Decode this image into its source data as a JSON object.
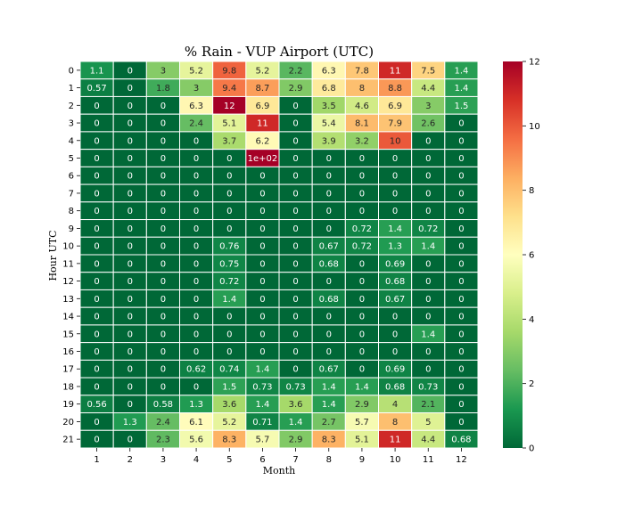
{
  "chart_data": {
    "type": "heatmap",
    "title": "% Rain - VUP Airport (UTC)",
    "xlabel": "Month",
    "ylabel": "Hour UTC",
    "x_categories": [
      "1",
      "2",
      "3",
      "4",
      "5",
      "6",
      "7",
      "8",
      "9",
      "10",
      "11",
      "12"
    ],
    "y_categories": [
      "0",
      "1",
      "2",
      "3",
      "4",
      "5",
      "6",
      "7",
      "8",
      "9",
      "10",
      "11",
      "12",
      "13",
      "14",
      "15",
      "16",
      "17",
      "18",
      "19",
      "20",
      "21"
    ],
    "values": [
      [
        1.1,
        0,
        3,
        5.2,
        9.8,
        5.2,
        2.2,
        6.3,
        7.8,
        11,
        7.5,
        1.4
      ],
      [
        0.57,
        0,
        1.8,
        3,
        9.4,
        8.7,
        2.9,
        6.8,
        8,
        8.8,
        4.4,
        1.4
      ],
      [
        0,
        0,
        0,
        6.3,
        12,
        6.9,
        0,
        3.5,
        4.6,
        6.9,
        3,
        1.5
      ],
      [
        0,
        0,
        0,
        2.4,
        5.1,
        11,
        0,
        5.4,
        8.1,
        7.9,
        2.6,
        0
      ],
      [
        0,
        0,
        0,
        0,
        3.7,
        6.2,
        0,
        3.9,
        3.2,
        10,
        0,
        0
      ],
      [
        0,
        0,
        0,
        0,
        0,
        100,
        0,
        0,
        0,
        0,
        0,
        0
      ],
      [
        0,
        0,
        0,
        0,
        0,
        0,
        0,
        0,
        0,
        0,
        0,
        0
      ],
      [
        0,
        0,
        0,
        0,
        0,
        0,
        0,
        0,
        0,
        0,
        0,
        0
      ],
      [
        0,
        0,
        0,
        0,
        0,
        0,
        0,
        0,
        0,
        0,
        0,
        0
      ],
      [
        0,
        0,
        0,
        0,
        0,
        0,
        0,
        0,
        0.72,
        1.4,
        0.72,
        0
      ],
      [
        0,
        0,
        0,
        0,
        0.76,
        0,
        0,
        0.67,
        0.72,
        1.3,
        1.4,
        0
      ],
      [
        0,
        0,
        0,
        0,
        0.75,
        0,
        0,
        0.68,
        0,
        0.69,
        0,
        0
      ],
      [
        0,
        0,
        0,
        0,
        0.72,
        0,
        0,
        0,
        0,
        0.68,
        0,
        0
      ],
      [
        0,
        0,
        0,
        0,
        1.4,
        0,
        0,
        0.68,
        0,
        0.67,
        0,
        0
      ],
      [
        0,
        0,
        0,
        0,
        0,
        0,
        0,
        0,
        0,
        0,
        0,
        0
      ],
      [
        0,
        0,
        0,
        0,
        0,
        0,
        0,
        0,
        0,
        0,
        1.4,
        0
      ],
      [
        0,
        0,
        0,
        0,
        0,
        0,
        0,
        0,
        0,
        0,
        0,
        0
      ],
      [
        0,
        0,
        0,
        0.62,
        0.74,
        1.4,
        0,
        0.67,
        0,
        0.69,
        0,
        0
      ],
      [
        0,
        0,
        0,
        0,
        1.5,
        0.73,
        0.73,
        1.4,
        1.4,
        0.68,
        0.73,
        0
      ],
      [
        0.56,
        0,
        0.58,
        1.3,
        3.6,
        1.4,
        3.6,
        1.4,
        2.9,
        4,
        2.1,
        0
      ],
      [
        0,
        1.3,
        2.4,
        6.1,
        5.2,
        0.71,
        1.4,
        2.7,
        5.7,
        8,
        5,
        0
      ],
      [
        0,
        0,
        2.3,
        5.6,
        8.3,
        5.7,
        2.9,
        8.3,
        5.1,
        11,
        4.4,
        0.68
      ]
    ],
    "labels": [
      [
        "1.1",
        "0",
        "3",
        "5.2",
        "9.8",
        "5.2",
        "2.2",
        "6.3",
        "7.8",
        "11",
        "7.5",
        "1.4"
      ],
      [
        "0.57",
        "0",
        "1.8",
        "3",
        "9.4",
        "8.7",
        "2.9",
        "6.8",
        "8",
        "8.8",
        "4.4",
        "1.4"
      ],
      [
        "0",
        "0",
        "0",
        "6.3",
        "12",
        "6.9",
        "0",
        "3.5",
        "4.6",
        "6.9",
        "3",
        "1.5"
      ],
      [
        "0",
        "0",
        "0",
        "2.4",
        "5.1",
        "11",
        "0",
        "5.4",
        "8.1",
        "7.9",
        "2.6",
        "0"
      ],
      [
        "0",
        "0",
        "0",
        "0",
        "3.7",
        "6.2",
        "0",
        "3.9",
        "3.2",
        "10",
        "0",
        "0"
      ],
      [
        "0",
        "0",
        "0",
        "0",
        "0",
        "1e+02",
        "0",
        "0",
        "0",
        "0",
        "0",
        "0"
      ],
      [
        "0",
        "0",
        "0",
        "0",
        "0",
        "0",
        "0",
        "0",
        "0",
        "0",
        "0",
        "0"
      ],
      [
        "0",
        "0",
        "0",
        "0",
        "0",
        "0",
        "0",
        "0",
        "0",
        "0",
        "0",
        "0"
      ],
      [
        "0",
        "0",
        "0",
        "0",
        "0",
        "0",
        "0",
        "0",
        "0",
        "0",
        "0",
        "0"
      ],
      [
        "0",
        "0",
        "0",
        "0",
        "0",
        "0",
        "0",
        "0",
        "0.72",
        "1.4",
        "0.72",
        "0"
      ],
      [
        "0",
        "0",
        "0",
        "0",
        "0.76",
        "0",
        "0",
        "0.67",
        "0.72",
        "1.3",
        "1.4",
        "0"
      ],
      [
        "0",
        "0",
        "0",
        "0",
        "0.75",
        "0",
        "0",
        "0.68",
        "0",
        "0.69",
        "0",
        "0"
      ],
      [
        "0",
        "0",
        "0",
        "0",
        "0.72",
        "0",
        "0",
        "0",
        "0",
        "0.68",
        "0",
        "0"
      ],
      [
        "0",
        "0",
        "0",
        "0",
        "1.4",
        "0",
        "0",
        "0.68",
        "0",
        "0.67",
        "0",
        "0"
      ],
      [
        "0",
        "0",
        "0",
        "0",
        "0",
        "0",
        "0",
        "0",
        "0",
        "0",
        "0",
        "0"
      ],
      [
        "0",
        "0",
        "0",
        "0",
        "0",
        "0",
        "0",
        "0",
        "0",
        "0",
        "1.4",
        "0"
      ],
      [
        "0",
        "0",
        "0",
        "0",
        "0",
        "0",
        "0",
        "0",
        "0",
        "0",
        "0",
        "0"
      ],
      [
        "0",
        "0",
        "0",
        "0.62",
        "0.74",
        "1.4",
        "0",
        "0.67",
        "0",
        "0.69",
        "0",
        "0"
      ],
      [
        "0",
        "0",
        "0",
        "0",
        "1.5",
        "0.73",
        "0.73",
        "1.4",
        "1.4",
        "0.68",
        "0.73",
        "0"
      ],
      [
        "0.56",
        "0",
        "0.58",
        "1.3",
        "3.6",
        "1.4",
        "3.6",
        "1.4",
        "2.9",
        "4",
        "2.1",
        "0"
      ],
      [
        "0",
        "1.3",
        "2.4",
        "6.1",
        "5.2",
        "0.71",
        "1.4",
        "2.7",
        "5.7",
        "8",
        "5",
        "0"
      ],
      [
        "0",
        "0",
        "2.3",
        "5.6",
        "8.3",
        "5.7",
        "2.9",
        "8.3",
        "5.1",
        "11",
        "4.4",
        "0.68"
      ]
    ],
    "color_range": [
      0,
      12
    ],
    "colormap": "RdYlGn_r",
    "colormap_stops": [
      "#006837",
      "#1a9850",
      "#66bd63",
      "#a6d96a",
      "#d9ef8b",
      "#ffffbf",
      "#fee08b",
      "#fdae61",
      "#f46d43",
      "#d73027",
      "#a50026"
    ],
    "colorbar_ticks": [
      "0",
      "2",
      "4",
      "6",
      "8",
      "10",
      "12"
    ],
    "cell_border_color": "#ffffff",
    "colorbar_placement": "right"
  }
}
